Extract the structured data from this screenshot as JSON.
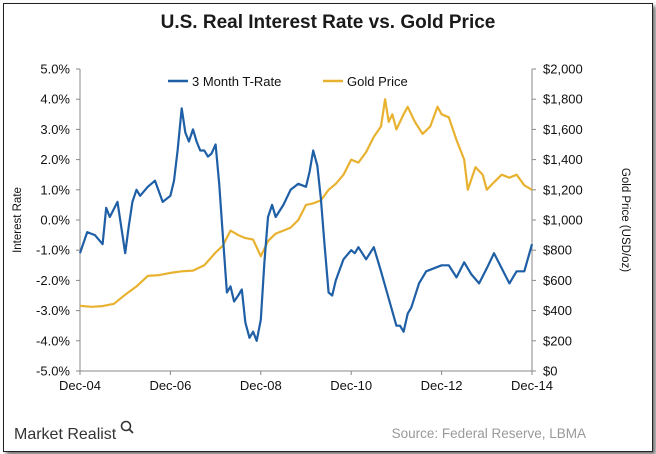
{
  "chart_data": {
    "type": "line",
    "title": "U.S. Real Interest Rate vs. Gold Price",
    "ylabel_left": "Interest Rate",
    "ylabel_right": "Gold Price (USD/oz)",
    "x_tick_labels": [
      "Dec-04",
      "Dec-06",
      "Dec-08",
      "Dec-10",
      "Dec-12",
      "Dec-14"
    ],
    "x_range": [
      2004.92,
      2014.92
    ],
    "y_left_range": [
      -5.0,
      5.0
    ],
    "y_left_tick_labels": [
      "5.0%",
      "4.0%",
      "3.0%",
      "2.0%",
      "1.0%",
      "0.0%",
      "-1.0%",
      "-2.0%",
      "-3.0%",
      "-4.0%",
      "-5.0%"
    ],
    "y_right_range": [
      0,
      2000
    ],
    "y_right_tick_labels": [
      "$2,000",
      "$1,800",
      "$1,600",
      "$1,400",
      "$1,200",
      "$1,000",
      "$800",
      "$600",
      "$400",
      "$200",
      "$0"
    ],
    "legend_position": "top",
    "grid": false,
    "series": [
      {
        "name": "3 Month T-Rate",
        "color": "#1f5fa6",
        "axis": "left",
        "x": [
          2004.92,
          2005.08,
          2005.25,
          2005.42,
          2005.5,
          2005.58,
          2005.75,
          2005.92,
          2006.0,
          2006.08,
          2006.17,
          2006.25,
          2006.42,
          2006.58,
          2006.75,
          2006.92,
          2007.0,
          2007.08,
          2007.17,
          2007.25,
          2007.33,
          2007.42,
          2007.5,
          2007.58,
          2007.67,
          2007.75,
          2007.83,
          2007.92,
          2008.0,
          2008.08,
          2008.17,
          2008.25,
          2008.33,
          2008.42,
          2008.5,
          2008.58,
          2008.67,
          2008.75,
          2008.83,
          2008.92,
          2009.0,
          2009.08,
          2009.17,
          2009.25,
          2009.42,
          2009.58,
          2009.75,
          2009.92,
          2010.0,
          2010.08,
          2010.17,
          2010.25,
          2010.33,
          2010.42,
          2010.5,
          2010.58,
          2010.75,
          2010.92,
          2011.0,
          2011.08,
          2011.25,
          2011.42,
          2011.58,
          2011.75,
          2011.92,
          2012.0,
          2012.08,
          2012.17,
          2012.25,
          2012.42,
          2012.58,
          2012.75,
          2012.92,
          2013.08,
          2013.25,
          2013.42,
          2013.58,
          2013.75,
          2013.92,
          2014.08,
          2014.25,
          2014.42,
          2014.58,
          2014.75,
          2014.92
        ],
        "values": [
          -1.1,
          -0.4,
          -0.5,
          -0.8,
          0.4,
          0.1,
          0.6,
          -1.1,
          -0.2,
          0.6,
          1.0,
          0.8,
          1.1,
          1.3,
          0.6,
          0.8,
          1.3,
          2.3,
          3.7,
          2.9,
          2.6,
          3.0,
          2.6,
          2.3,
          2.3,
          2.1,
          2.2,
          2.5,
          1.2,
          -0.5,
          -2.4,
          -2.2,
          -2.7,
          -2.5,
          -2.3,
          -3.4,
          -3.9,
          -3.7,
          -4.0,
          -3.3,
          -1.4,
          0.1,
          0.5,
          0.1,
          0.5,
          1.0,
          1.2,
          1.1,
          1.6,
          2.3,
          1.8,
          0.7,
          -0.8,
          -2.4,
          -2.5,
          -2.0,
          -1.3,
          -1.0,
          -1.1,
          -0.9,
          -1.3,
          -0.9,
          -1.7,
          -2.6,
          -3.5,
          -3.5,
          -3.7,
          -3.1,
          -2.9,
          -2.1,
          -1.7,
          -1.6,
          -1.5,
          -1.5,
          -1.9,
          -1.4,
          -1.8,
          -2.1,
          -1.6,
          -1.1,
          -1.6,
          -2.1,
          -1.7,
          -1.7,
          -0.8
        ]
      },
      {
        "name": "Gold Price",
        "color": "#e8b230",
        "axis": "right",
        "x": [
          2004.92,
          2005.17,
          2005.42,
          2005.67,
          2005.92,
          2006.17,
          2006.42,
          2006.67,
          2006.92,
          2007.17,
          2007.42,
          2007.67,
          2007.92,
          2008.08,
          2008.25,
          2008.42,
          2008.58,
          2008.75,
          2008.92,
          2009.08,
          2009.25,
          2009.42,
          2009.58,
          2009.75,
          2009.92,
          2010.08,
          2010.25,
          2010.42,
          2010.58,
          2010.75,
          2010.92,
          2011.08,
          2011.25,
          2011.42,
          2011.58,
          2011.67,
          2011.75,
          2011.83,
          2011.92,
          2012.08,
          2012.17,
          2012.33,
          2012.5,
          2012.67,
          2012.83,
          2012.92,
          2013.08,
          2013.25,
          2013.42,
          2013.5,
          2013.67,
          2013.83,
          2013.92,
          2014.08,
          2014.25,
          2014.42,
          2014.58,
          2014.75,
          2014.92
        ],
        "values": [
          432,
          425,
          430,
          445,
          505,
          560,
          630,
          635,
          650,
          660,
          665,
          700,
          785,
          830,
          930,
          900,
          880,
          870,
          760,
          860,
          910,
          930,
          950,
          1000,
          1100,
          1110,
          1130,
          1200,
          1240,
          1300,
          1400,
          1380,
          1450,
          1550,
          1620,
          1800,
          1650,
          1700,
          1600,
          1700,
          1750,
          1650,
          1570,
          1620,
          1750,
          1700,
          1680,
          1530,
          1400,
          1200,
          1350,
          1300,
          1200,
          1250,
          1300,
          1280,
          1300,
          1230,
          1200
        ]
      }
    ]
  },
  "branding": {
    "logo_text": "Market Realist"
  },
  "source": "Source: Federal Reserve, LBMA"
}
